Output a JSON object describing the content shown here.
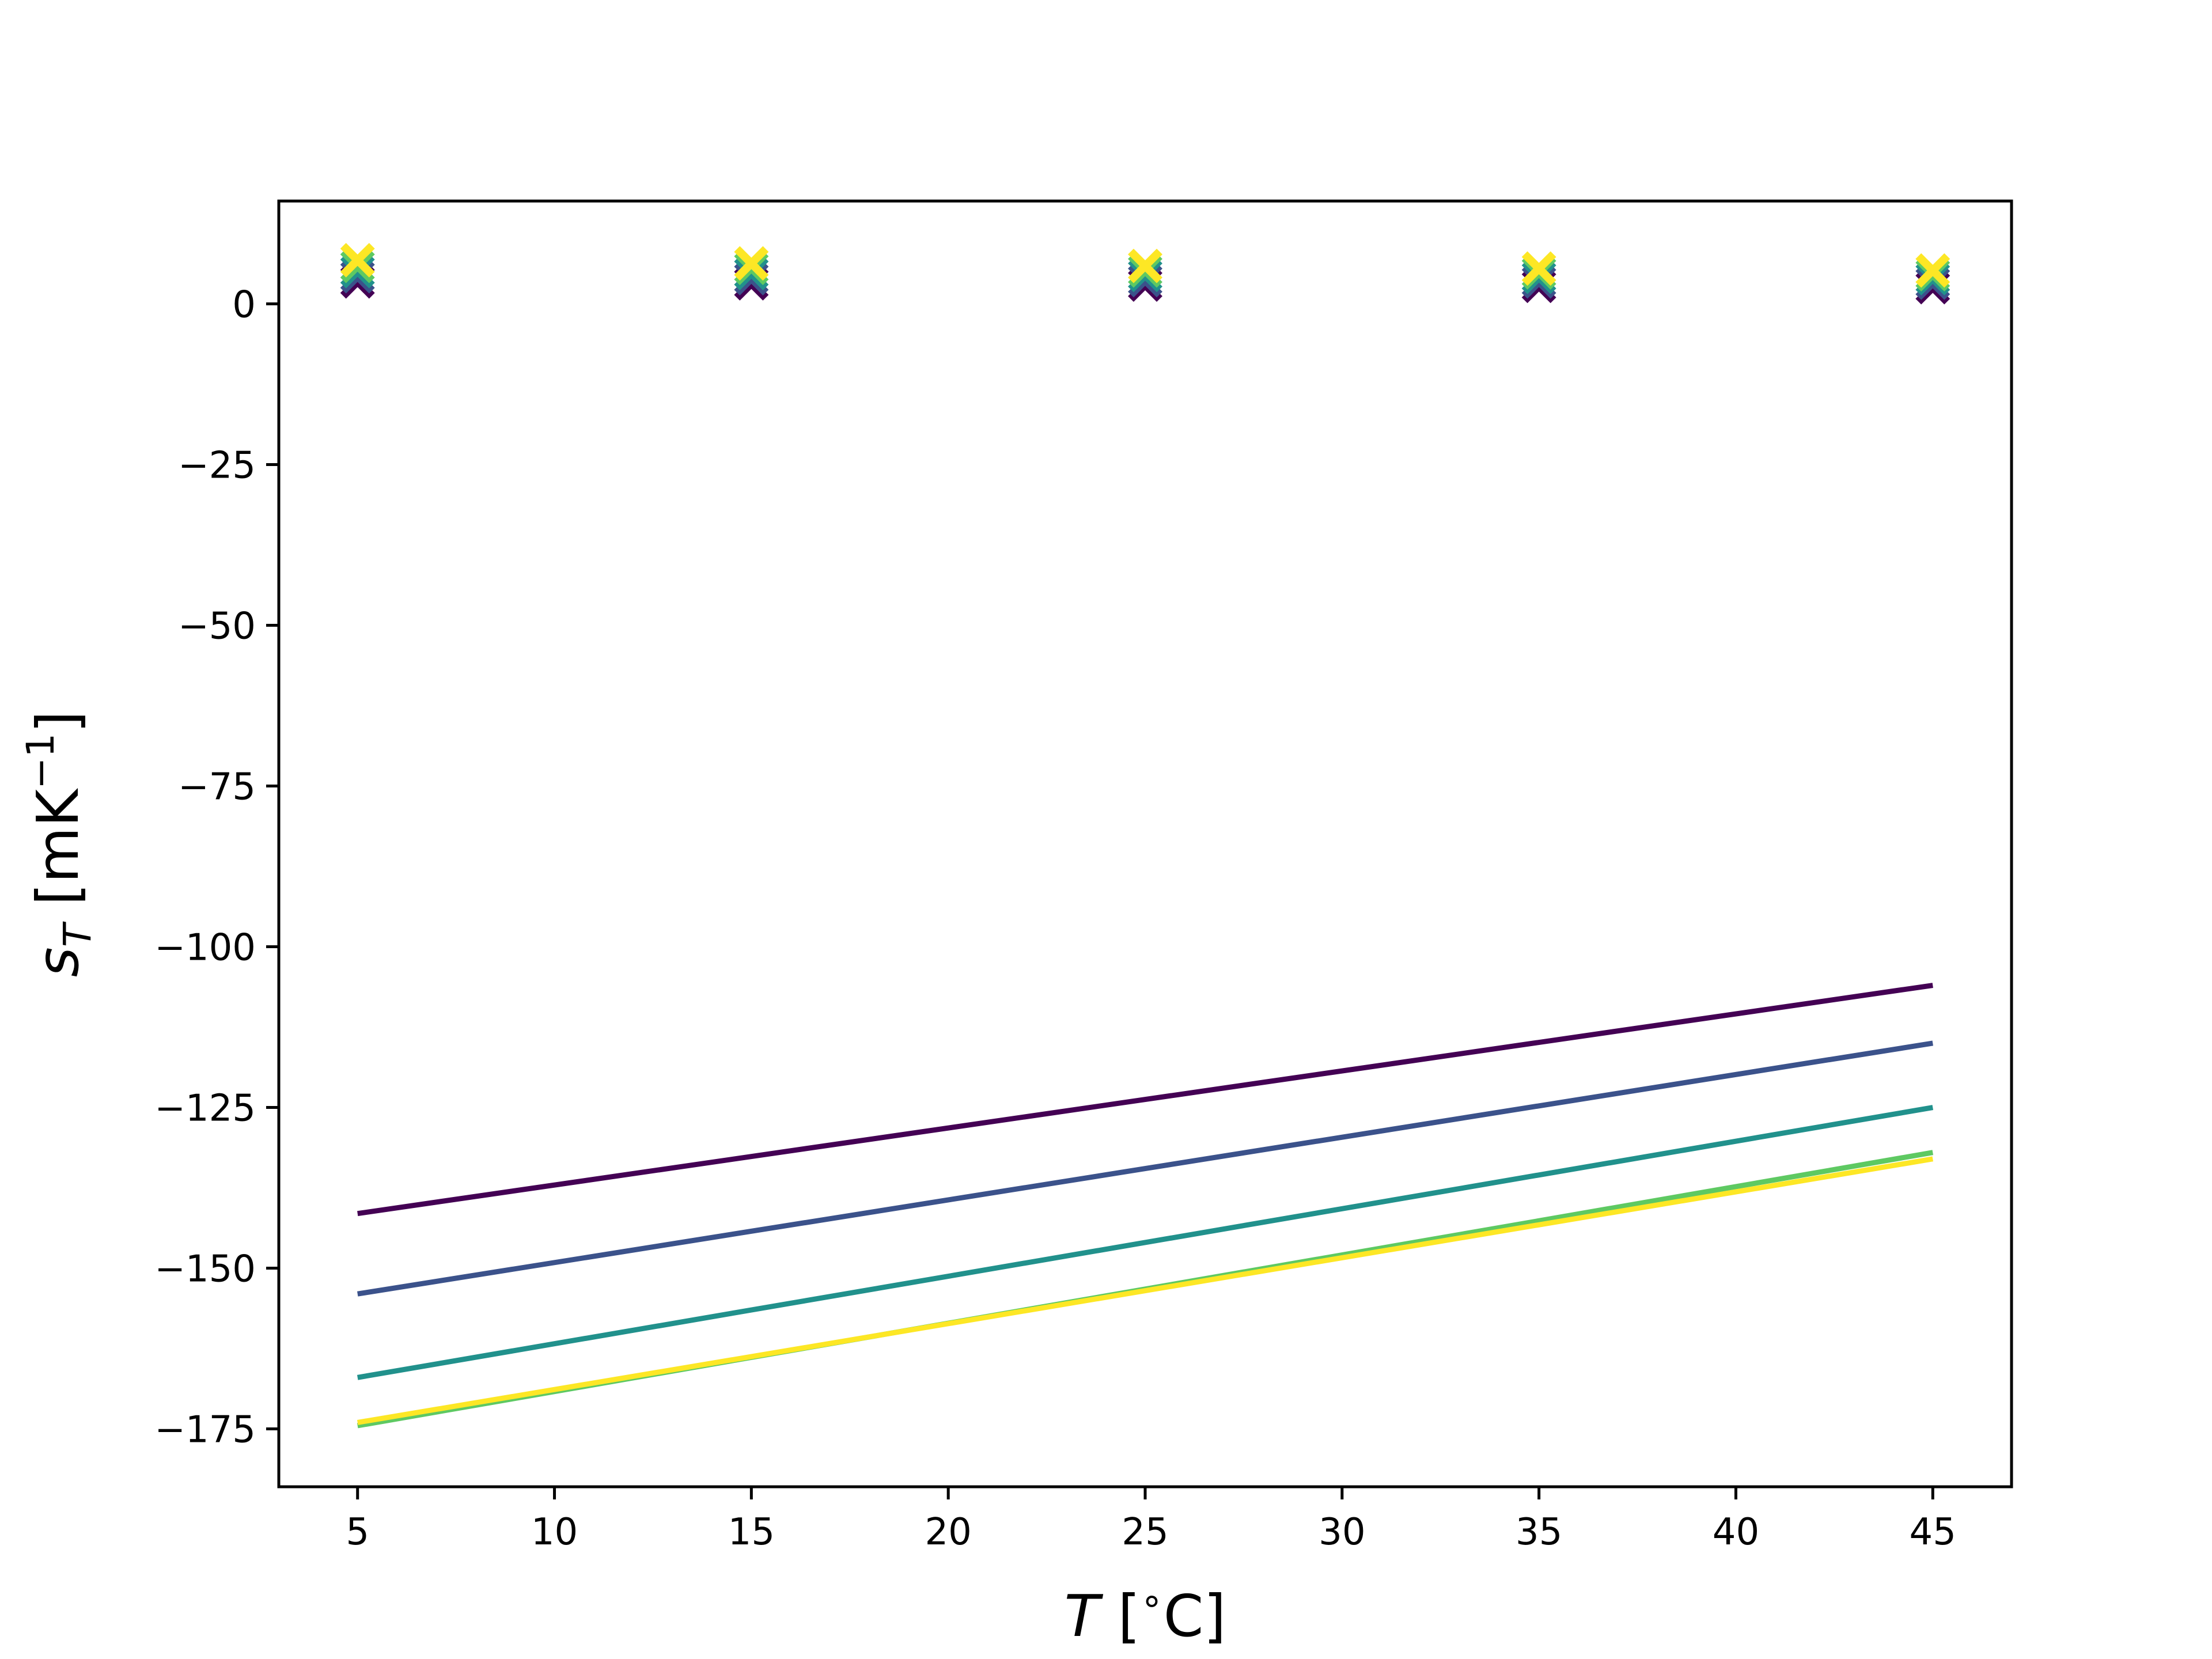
{
  "chart_data": {
    "type": "line",
    "xlabel": "T [°C]",
    "ylabel": "s_T [mK⁻¹]",
    "xlim": [
      3,
      47
    ],
    "ylim": [
      -184,
      16
    ],
    "xticks": [
      5,
      10,
      15,
      20,
      25,
      30,
      35,
      40,
      45
    ],
    "xtick_labels": [
      "5",
      "10",
      "15",
      "20",
      "25",
      "30",
      "35",
      "40",
      "45"
    ],
    "yticks": [
      0,
      -25,
      -50,
      -75,
      -100,
      -125,
      -150,
      -175
    ],
    "ytick_labels": [
      "0",
      "−25",
      "−50",
      "−75",
      "−100",
      "−125",
      "−150",
      "−175"
    ],
    "grid": false,
    "line_series": [
      {
        "color": "#440154",
        "x": [
          5,
          45
        ],
        "y": [
          -141.5,
          -106
        ]
      },
      {
        "color": "#3b528b",
        "x": [
          5,
          45
        ],
        "y": [
          -154,
          -115
        ]
      },
      {
        "color": "#21918c",
        "x": [
          5,
          45
        ],
        "y": [
          -167,
          -125
        ]
      },
      {
        "color": "#5ec962",
        "x": [
          5,
          45
        ],
        "y": [
          -174.5,
          -132
        ]
      },
      {
        "color": "#fde725",
        "x": [
          5,
          45
        ],
        "y": [
          -174,
          -133
        ]
      }
    ],
    "scatter_series": [
      {
        "color": "#440154",
        "marker": "x",
        "x": [
          5,
          15,
          25,
          35,
          45
        ],
        "y": [
          3.5,
          3.2,
          3.0,
          2.8,
          2.6
        ]
      },
      {
        "color": "#3b528b",
        "marker": "x",
        "x": [
          5,
          15,
          25,
          35,
          45
        ],
        "y": [
          4.3,
          4.0,
          3.7,
          3.5,
          3.3
        ]
      },
      {
        "color": "#21918c",
        "marker": "x",
        "x": [
          5,
          15,
          25,
          35,
          45
        ],
        "y": [
          5.1,
          4.8,
          4.5,
          4.2,
          4.0
        ]
      },
      {
        "color": "#5ec962",
        "marker": "x",
        "x": [
          5,
          15,
          25,
          35,
          45
        ],
        "y": [
          5.9,
          5.6,
          5.2,
          4.9,
          4.6
        ]
      },
      {
        "color": "#fde725",
        "marker": "x",
        "x": [
          5,
          15,
          25,
          35,
          45
        ],
        "y": [
          6.8,
          6.3,
          5.9,
          5.5,
          5.2
        ]
      }
    ]
  }
}
